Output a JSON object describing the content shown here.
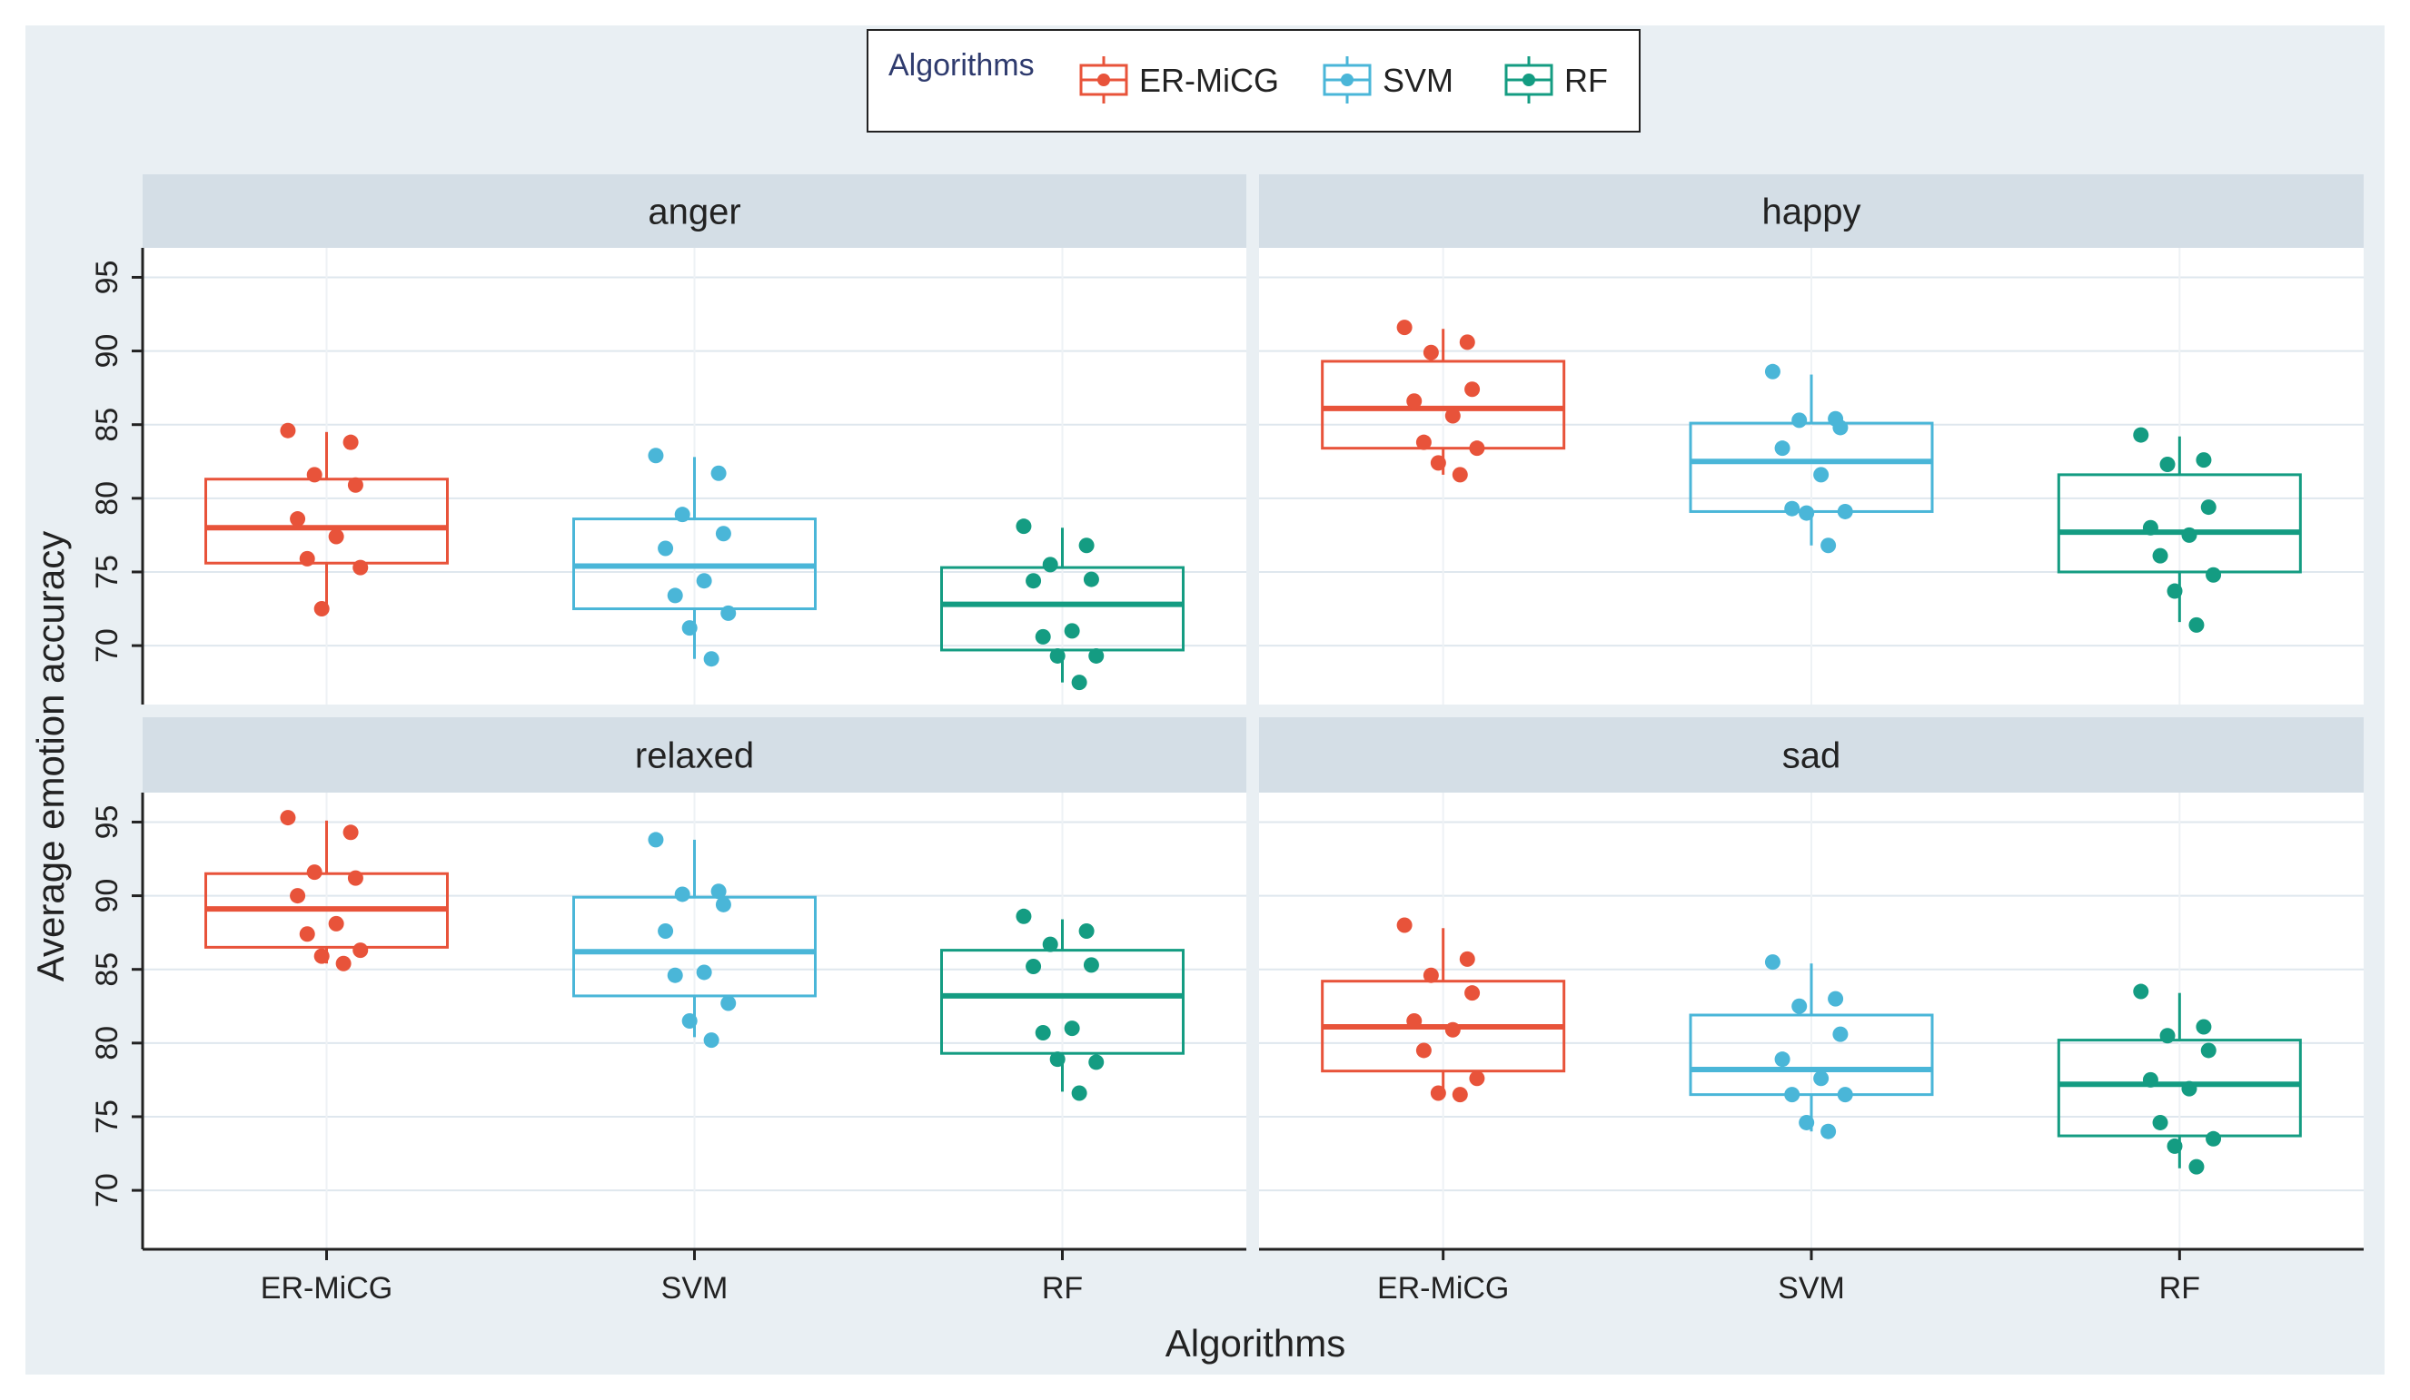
{
  "chart_data": {
    "type": "box",
    "xlabel": "Algorithms",
    "ylabel": "Average emotion accuracy",
    "ylim": [
      66,
      97
    ],
    "yticks": [
      70,
      75,
      80,
      85,
      90,
      95
    ],
    "categories": [
      "ER-MiCG",
      "SVM",
      "RF"
    ],
    "colors": {
      "ER-MiCG": "#e8533a",
      "SVM": "#4ab6d8",
      "RF": "#149c82"
    },
    "legend": {
      "title": "Algorithms",
      "position": "top-center",
      "entries": [
        "ER-MiCG",
        "SVM",
        "RF"
      ]
    },
    "grid": true,
    "panels": [
      {
        "name": "anger",
        "boxes": [
          {
            "category": "ER-MiCG",
            "q1": 75.6,
            "median": 78.0,
            "q3": 81.3,
            "whisker_low": 72.6,
            "whisker_high": 84.5,
            "points": [
              84.6,
              83.8,
              81.6,
              80.9,
              78.6,
              77.4,
              75.9,
              75.3,
              72.5
            ]
          },
          {
            "category": "SVM",
            "q1": 72.5,
            "median": 75.4,
            "q3": 78.6,
            "whisker_low": 69.1,
            "whisker_high": 82.8,
            "points": [
              82.9,
              81.7,
              78.9,
              77.6,
              76.6,
              74.4,
              73.4,
              72.2,
              71.2,
              69.1
            ]
          },
          {
            "category": "RF",
            "q1": 69.7,
            "median": 72.8,
            "q3": 75.3,
            "whisker_low": 67.5,
            "whisker_high": 78.0,
            "points": [
              78.1,
              76.8,
              75.5,
              74.5,
              74.4,
              71.0,
              70.6,
              69.3,
              69.3,
              67.5
            ]
          }
        ]
      },
      {
        "name": "happy",
        "boxes": [
          {
            "category": "ER-MiCG",
            "q1": 83.4,
            "median": 86.1,
            "q3": 89.3,
            "whisker_low": 81.6,
            "whisker_high": 91.5,
            "points": [
              91.6,
              90.6,
              89.9,
              87.4,
              86.6,
              85.6,
              83.8,
              83.4,
              82.4,
              81.6
            ]
          },
          {
            "category": "SVM",
            "q1": 79.1,
            "median": 82.5,
            "q3": 85.1,
            "whisker_low": 76.8,
            "whisker_high": 88.4,
            "points": [
              88.6,
              85.4,
              85.3,
              84.8,
              83.4,
              81.6,
              79.3,
              79.1,
              79.0,
              76.8
            ]
          },
          {
            "category": "RF",
            "q1": 75.0,
            "median": 77.7,
            "q3": 81.6,
            "whisker_low": 71.6,
            "whisker_high": 84.2,
            "points": [
              84.3,
              82.6,
              82.3,
              79.4,
              78.0,
              77.5,
              76.1,
              74.8,
              73.7,
              71.4
            ]
          }
        ]
      },
      {
        "name": "relaxed",
        "boxes": [
          {
            "category": "ER-MiCG",
            "q1": 86.5,
            "median": 89.1,
            "q3": 91.5,
            "whisker_low": 85.4,
            "whisker_high": 95.1,
            "points": [
              95.3,
              94.3,
              91.6,
              91.2,
              90.0,
              88.1,
              87.4,
              86.3,
              85.9,
              85.4
            ]
          },
          {
            "category": "SVM",
            "q1": 83.2,
            "median": 86.2,
            "q3": 89.9,
            "whisker_low": 80.4,
            "whisker_high": 93.8,
            "points": [
              93.8,
              90.3,
              90.1,
              89.4,
              87.6,
              84.8,
              84.6,
              82.7,
              81.5,
              80.2
            ]
          },
          {
            "category": "RF",
            "q1": 79.3,
            "median": 83.2,
            "q3": 86.3,
            "whisker_low": 76.7,
            "whisker_high": 88.4,
            "points": [
              88.6,
              87.6,
              86.7,
              85.3,
              85.2,
              81.0,
              80.7,
              78.7,
              78.9,
              76.6
            ]
          }
        ]
      },
      {
        "name": "sad",
        "boxes": [
          {
            "category": "ER-MiCG",
            "q1": 78.1,
            "median": 81.1,
            "q3": 84.2,
            "whisker_low": 76.5,
            "whisker_high": 87.8,
            "points": [
              88.0,
              85.7,
              84.6,
              83.4,
              81.5,
              80.9,
              79.5,
              77.6,
              76.6,
              76.5
            ]
          },
          {
            "category": "SVM",
            "q1": 76.5,
            "median": 78.2,
            "q3": 81.9,
            "whisker_low": 74.0,
            "whisker_high": 85.4,
            "points": [
              85.5,
              83.0,
              82.5,
              80.6,
              78.9,
              77.6,
              76.5,
              76.5,
              74.6,
              74.0
            ]
          },
          {
            "category": "RF",
            "q1": 73.7,
            "median": 77.2,
            "q3": 80.2,
            "whisker_low": 71.5,
            "whisker_high": 83.4,
            "points": [
              83.5,
              81.1,
              80.5,
              79.5,
              77.5,
              76.9,
              74.6,
              73.5,
              73.0,
              71.6
            ]
          }
        ]
      }
    ]
  }
}
